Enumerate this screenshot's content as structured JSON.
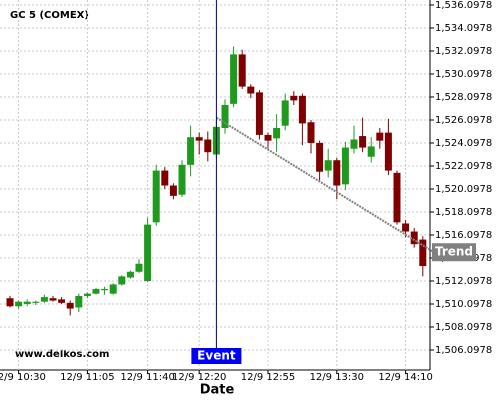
{
  "chart_data": {
    "type": "candlestick",
    "title": "GC 5 (COMEX)",
    "xlabel": "Date",
    "watermark": "www.delkos.com",
    "categories": [
      null,
      "12/9 10:30",
      null,
      null,
      null,
      null,
      null,
      null,
      null,
      "12/9 11:05",
      null,
      null,
      null,
      null,
      null,
      null,
      "12/9 11:40",
      null,
      null,
      null,
      null,
      null,
      "12/9 12:20",
      null,
      null,
      null,
      null,
      null,
      null,
      null,
      "12/9 12:55",
      null,
      null,
      null,
      null,
      null,
      null,
      null,
      "12/9 13:30",
      null,
      null,
      null,
      null,
      null,
      null,
      null,
      "12/9 14:10",
      null,
      null
    ],
    "open": [
      1510.6,
      1509.9,
      1510.1,
      1510.2,
      1510.3,
      1510.6,
      1510.5,
      1510.2,
      1509.8,
      1510.8,
      1511.0,
      1511.3,
      1511.0,
      1511.8,
      1512.4,
      1512.9,
      1512.1,
      1517.2,
      1521.7,
      1520.4,
      1519.6,
      1522.2,
      1524.6,
      1524.4,
      1523.1,
      1525.4,
      1527.5,
      1531.8,
      1529.0,
      1528.5,
      1524.8,
      1524.5,
      1525.6,
      1528.2,
      1528.2,
      1525.9,
      1524.1,
      1521.7,
      1522.6,
      1520.5,
      1523.6,
      1524.7,
      1522.9,
      1525.0,
      1525.0,
      1521.5,
      1517.1,
      1516.4,
      1515.7
    ],
    "high": [
      1510.8,
      1510.4,
      1510.5,
      1510.4,
      1510.9,
      1510.8,
      1510.7,
      1510.4,
      1511.0,
      1511.1,
      1511.5,
      1511.6,
      1511.9,
      1512.6,
      1513.0,
      1514.0,
      1517.6,
      1522.2,
      1522.0,
      1520.6,
      1522.6,
      1525.6,
      1525.0,
      1525.1,
      1526.2,
      1527.9,
      1532.5,
      1532.2,
      1529.2,
      1528.7,
      1525.0,
      1526.6,
      1528.4,
      1528.6,
      1528.4,
      1526.1,
      1524.3,
      1523.6,
      1522.8,
      1524.2,
      1525.6,
      1526.3,
      1524.6,
      1525.4,
      1526.2,
      1521.7,
      1517.4,
      1516.7,
      1516.0
    ],
    "low": [
      1509.8,
      1509.7,
      1509.9,
      1510.0,
      1510.2,
      1510.3,
      1510.1,
      1509.1,
      1509.4,
      1510.6,
      1510.9,
      1510.9,
      1510.9,
      1511.7,
      1512.3,
      1512.8,
      1512.0,
      1516.9,
      1520.1,
      1519.2,
      1519.4,
      1521.2,
      1523.1,
      1522.5,
      1522.8,
      1524.9,
      1527.2,
      1528.8,
      1528.0,
      1524.4,
      1523.6,
      1523.3,
      1525.2,
      1527.4,
      1523.9,
      1523.2,
      1520.8,
      1521.1,
      1519.2,
      1520.0,
      1523.2,
      1523.3,
      1522.4,
      1523.6,
      1521.3,
      1517.0,
      1515.9,
      1515.0,
      1512.5
    ],
    "close": [
      1509.9,
      1510.3,
      1510.3,
      1510.3,
      1510.7,
      1510.4,
      1510.2,
      1509.7,
      1510.8,
      1511.0,
      1511.4,
      1511.4,
      1511.8,
      1512.5,
      1512.9,
      1513.6,
      1517.0,
      1521.7,
      1520.4,
      1519.5,
      1522.2,
      1524.6,
      1524.3,
      1523.3,
      1525.5,
      1527.4,
      1531.8,
      1529.0,
      1528.4,
      1524.8,
      1524.3,
      1525.4,
      1527.8,
      1527.8,
      1525.8,
      1524.1,
      1521.6,
      1522.6,
      1520.4,
      1523.7,
      1524.4,
      1523.7,
      1523.8,
      1524.3,
      1521.7,
      1517.2,
      1516.4,
      1515.3,
      1513.4
    ],
    "up_color": "#1f9a1f",
    "down_color": "#7f0000",
    "ylim": [
      1504.36,
      1536.53
    ],
    "yticks": [
      {
        "value": 1506.0978,
        "label": "1,506.0978"
      },
      {
        "value": 1508.0978,
        "label": "1,508.0978"
      },
      {
        "value": 1510.0978,
        "label": "1,510.0978"
      },
      {
        "value": 1512.0978,
        "label": "1,512.0978"
      },
      {
        "value": 1514.0978,
        "label": "1,514.0978"
      },
      {
        "value": 1516.0978,
        "label": "1,516.0978"
      },
      {
        "value": 1518.0978,
        "label": "1,518.0978"
      },
      {
        "value": 1520.0978,
        "label": "1,520.0978"
      },
      {
        "value": 1522.0978,
        "label": "1,522.0978"
      },
      {
        "value": 1524.0978,
        "label": "1,524.0978"
      },
      {
        "value": 1526.0978,
        "label": "1,526.0978"
      },
      {
        "value": 1528.0978,
        "label": "1,528.0978"
      },
      {
        "value": 1530.0978,
        "label": "1,530.0978"
      },
      {
        "value": 1532.0978,
        "label": "1,532.0978"
      },
      {
        "value": 1534.0978,
        "label": "1,534.0978"
      },
      {
        "value": 1536.0978,
        "label": "1,536.0978"
      }
    ],
    "grid": true,
    "event": {
      "label": "Event",
      "x": 24,
      "color": "#0000ff"
    },
    "trend": {
      "label": "Trend",
      "x": [
        24,
        49.3
      ],
      "y": [
        1526.3,
        1514.6
      ],
      "color": "#808080"
    }
  }
}
